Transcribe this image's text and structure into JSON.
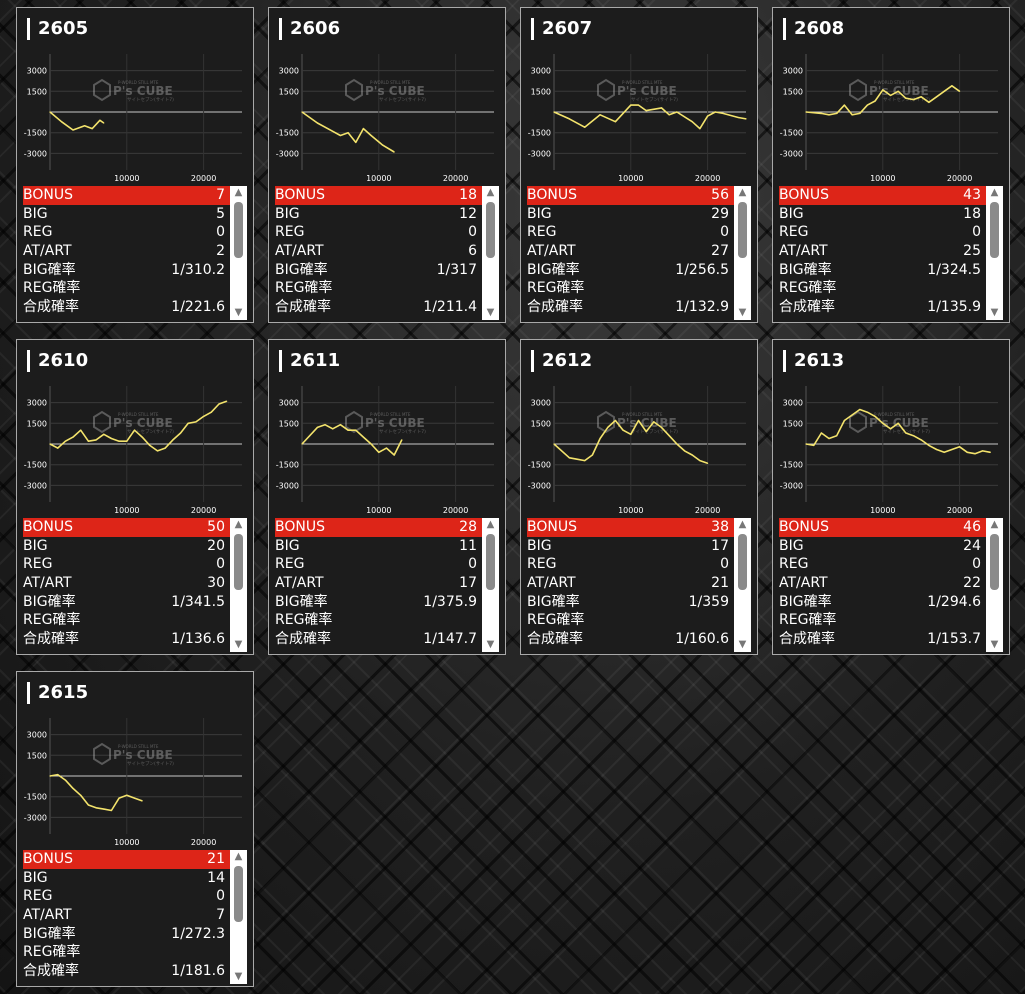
{
  "labels": {
    "bonus": "BONUS",
    "big": "BIG",
    "reg": "REG",
    "atart": "AT/ART",
    "big_rate": "BIG確率",
    "reg_rate": "REG確率",
    "total_rate": "合成確率"
  },
  "axis": {
    "y_ticks": [
      "3000",
      "1500",
      "-1500",
      "-3000"
    ],
    "x_ticks": [
      "10000",
      "20000"
    ],
    "ylim": [
      -4200,
      4200
    ],
    "xlim": [
      0,
      25000
    ]
  },
  "watermark": {
    "brand": "P's CUBE",
    "line1": "P-WORLD STILL MTE",
    "line2": "サイトセブン(サイト7)"
  },
  "colors": {
    "line": "#f3e36c",
    "bonus_bg": "#dd2518",
    "panel": "#1c1c1c",
    "border": "#a9a9a9"
  },
  "machines": [
    {
      "id": "2605",
      "bonus": "7",
      "big": "5",
      "reg": "0",
      "atart": "2",
      "big_rate": "1/310.2",
      "reg_rate": "",
      "total_rate": "1/221.6",
      "chart_data": {
        "type": "line",
        "x": [
          0,
          1500,
          3000,
          4500,
          5500,
          6500,
          7000
        ],
        "y": [
          0,
          -700,
          -1300,
          -1000,
          -1200,
          -600,
          -800
        ]
      }
    },
    {
      "id": "2606",
      "bonus": "18",
      "big": "12",
      "reg": "0",
      "atart": "6",
      "big_rate": "1/317",
      "reg_rate": "",
      "total_rate": "1/211.4",
      "chart_data": {
        "type": "line",
        "x": [
          0,
          2000,
          4000,
          5000,
          6000,
          7000,
          8000,
          9000,
          10500,
          12000
        ],
        "y": [
          0,
          -800,
          -1400,
          -1700,
          -1500,
          -2200,
          -1200,
          -1700,
          -2400,
          -2900
        ]
      }
    },
    {
      "id": "2607",
      "bonus": "56",
      "big": "29",
      "reg": "0",
      "atart": "27",
      "big_rate": "1/256.5",
      "reg_rate": "",
      "total_rate": "1/132.9",
      "chart_data": {
        "type": "line",
        "x": [
          0,
          2000,
          4000,
          6000,
          8000,
          10000,
          11000,
          12000,
          14000,
          15000,
          16000,
          18000,
          19000,
          20000,
          21000,
          22000,
          24000,
          25000
        ],
        "y": [
          0,
          -500,
          -1100,
          -200,
          -700,
          500,
          500,
          100,
          300,
          -200,
          0,
          -700,
          -1200,
          -300,
          0,
          -100,
          -400,
          -500
        ]
      }
    },
    {
      "id": "2608",
      "bonus": "43",
      "big": "18",
      "reg": "0",
      "atart": "25",
      "big_rate": "1/324.5",
      "reg_rate": "",
      "total_rate": "1/135.9",
      "chart_data": {
        "type": "line",
        "x": [
          0,
          2000,
          3000,
          4000,
          5000,
          6000,
          7000,
          8000,
          9000,
          10000,
          11000,
          12000,
          13000,
          14000,
          15000,
          16000,
          17000,
          18000,
          19000,
          20000
        ],
        "y": [
          0,
          -100,
          -200,
          -100,
          500,
          -200,
          -100,
          500,
          800,
          1600,
          1200,
          1500,
          1000,
          900,
          1100,
          700,
          1100,
          1500,
          1900,
          1500
        ]
      }
    },
    {
      "id": "2610",
      "bonus": "50",
      "big": "20",
      "reg": "0",
      "atart": "30",
      "big_rate": "1/341.5",
      "reg_rate": "",
      "total_rate": "1/136.6",
      "chart_data": {
        "type": "line",
        "x": [
          0,
          1000,
          2000,
          3000,
          4000,
          5000,
          6000,
          7000,
          8000,
          9000,
          10000,
          11000,
          12000,
          13000,
          14000,
          15000,
          16000,
          17000,
          18000,
          19000,
          20000,
          21000,
          22000,
          23000
        ],
        "y": [
          0,
          -300,
          200,
          500,
          1000,
          200,
          300,
          700,
          400,
          200,
          200,
          1000,
          500,
          -100,
          -500,
          -300,
          300,
          800,
          1500,
          1600,
          2000,
          2300,
          2900,
          3100
        ]
      }
    },
    {
      "id": "2611",
      "bonus": "28",
      "big": "11",
      "reg": "0",
      "atart": "17",
      "big_rate": "1/375.9",
      "reg_rate": "",
      "total_rate": "1/147.7",
      "chart_data": {
        "type": "line",
        "x": [
          0,
          2000,
          3000,
          4000,
          5000,
          6000,
          7000,
          8000,
          9000,
          10000,
          11000,
          12000,
          13000
        ],
        "y": [
          0,
          1200,
          1400,
          1100,
          1400,
          1000,
          1000,
          500,
          0,
          -600,
          -300,
          -800,
          300
        ]
      }
    },
    {
      "id": "2612",
      "bonus": "38",
      "big": "17",
      "reg": "0",
      "atart": "21",
      "big_rate": "1/359",
      "reg_rate": "",
      "total_rate": "1/160.6",
      "chart_data": {
        "type": "line",
        "x": [
          0,
          2000,
          3000,
          4000,
          5000,
          6000,
          7000,
          8000,
          9000,
          10000,
          11000,
          12000,
          13000,
          14000,
          15000,
          16000,
          17000,
          18000,
          19000,
          20000
        ],
        "y": [
          0,
          -1000,
          -1100,
          -1200,
          -800,
          400,
          1200,
          1700,
          1000,
          700,
          1700,
          900,
          1600,
          1200,
          600,
          0,
          -500,
          -800,
          -1200,
          -1400
        ]
      }
    },
    {
      "id": "2613",
      "bonus": "46",
      "big": "24",
      "reg": "0",
      "atart": "22",
      "big_rate": "1/294.6",
      "reg_rate": "",
      "total_rate": "1/153.7",
      "chart_data": {
        "type": "line",
        "x": [
          0,
          1000,
          2000,
          3000,
          4000,
          5000,
          6000,
          7000,
          8000,
          9000,
          10000,
          11000,
          12000,
          13000,
          14000,
          15000,
          16000,
          17000,
          18000,
          19000,
          20000,
          21000,
          22000,
          23000,
          24000
        ],
        "y": [
          0,
          -100,
          800,
          400,
          600,
          1700,
          2100,
          2500,
          2300,
          2000,
          1500,
          1100,
          1500,
          800,
          600,
          300,
          -100,
          -400,
          -600,
          -400,
          -200,
          -600,
          -700,
          -500,
          -600
        ]
      }
    },
    {
      "id": "2615",
      "bonus": "21",
      "big": "14",
      "reg": "0",
      "atart": "7",
      "big_rate": "1/272.3",
      "reg_rate": "",
      "total_rate": "1/181.6",
      "chart_data": {
        "type": "line",
        "x": [
          0,
          1000,
          2000,
          3000,
          4000,
          5000,
          6000,
          7000,
          8000,
          9000,
          10000,
          11000,
          12000
        ],
        "y": [
          0,
          100,
          -300,
          -900,
          -1400,
          -2100,
          -2300,
          -2400,
          -2500,
          -1600,
          -1400,
          -1600,
          -1800
        ]
      }
    }
  ]
}
